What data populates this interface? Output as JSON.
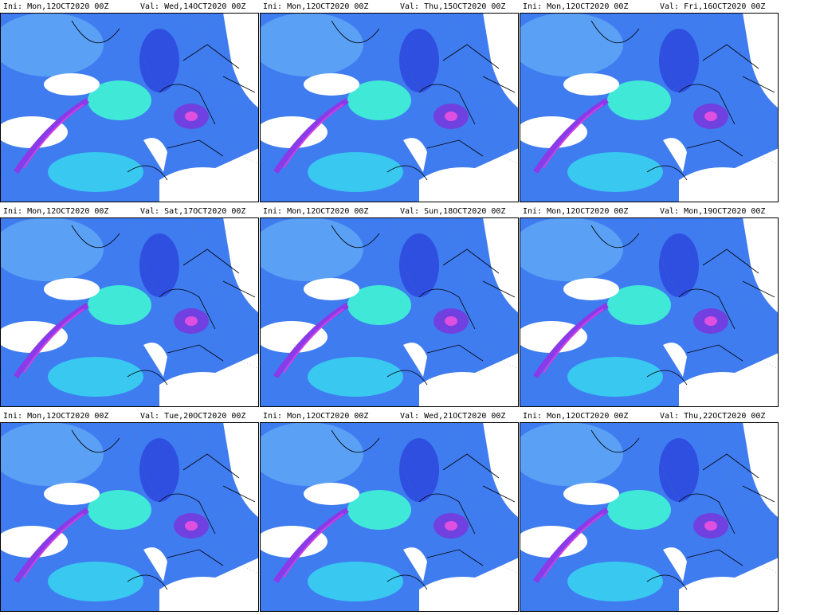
{
  "panels": [
    {
      "ini": "Ini: Mon,12OCT2020 00Z",
      "val": "Val: Wed,14OCT2020 00Z"
    },
    {
      "ini": "Ini: Mon,12OCT2020 00Z",
      "val": "Val: Thu,15OCT2020 00Z"
    },
    {
      "ini": "Ini: Mon,12OCT2020 00Z",
      "val": "Val: Fri,16OCT2020 00Z"
    },
    {
      "ini": "Ini: Mon,12OCT2020 00Z",
      "val": "Val: Sat,17OCT2020 00Z"
    },
    {
      "ini": "Ini: Mon,12OCT2020 00Z",
      "val": "Val: Sun,18OCT2020 00Z"
    },
    {
      "ini": "Ini: Mon,12OCT2020 00Z",
      "val": "Val: Mon,19OCT2020 00Z"
    },
    {
      "ini": "Ini: Mon,12OCT2020 00Z",
      "val": "Val: Tue,20OCT2020 00Z"
    },
    {
      "ini": "Ini: Mon,12OCT2020 00Z",
      "val": "Val: Wed,21OCT2020 00Z"
    },
    {
      "ini": "Ini: Mon,12OCT2020 00Z",
      "val": "Val: Thu,22OCT2020 00Z"
    }
  ]
}
